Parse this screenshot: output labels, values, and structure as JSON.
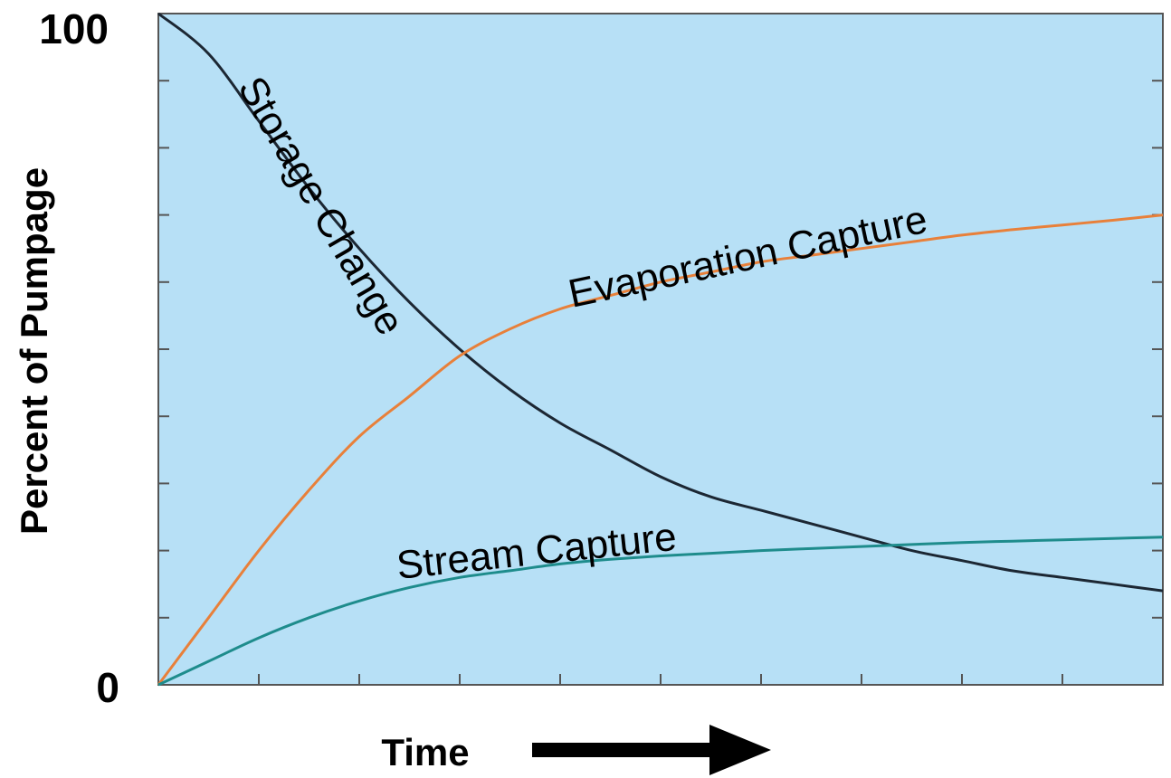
{
  "chart_data": {
    "type": "line",
    "xlabel": "Time",
    "ylabel": "Percent of Pumpage",
    "xlim": [
      0,
      10
    ],
    "ylim": [
      0,
      100
    ],
    "y_tick_labels": [
      "0",
      "100"
    ],
    "grid": false,
    "x": [
      0,
      0.5,
      1,
      1.5,
      2,
      2.5,
      3,
      3.5,
      4,
      4.5,
      5,
      5.5,
      6,
      6.5,
      7,
      7.5,
      8,
      8.5,
      9,
      9.5,
      10
    ],
    "series": [
      {
        "name": "Storage Change",
        "color": "#1c2733",
        "values": [
          100,
          94,
          84,
          74,
          65,
          57,
          50,
          44,
          39,
          35,
          31,
          28,
          26,
          24,
          22,
          20,
          18.5,
          17,
          16,
          15,
          14
        ]
      },
      {
        "name": "Evaporation Capture",
        "color": "#e8803a",
        "values": [
          0,
          10,
          20,
          29,
          37,
          43,
          49,
          53,
          56,
          58,
          60,
          61.5,
          63,
          64,
          65,
          66,
          67,
          67.8,
          68.5,
          69.2,
          70
        ]
      },
      {
        "name": "Stream Capture",
        "color": "#1e8c8c",
        "values": [
          0,
          3.5,
          7,
          10,
          12.5,
          14.5,
          16,
          17,
          18,
          18.7,
          19.2,
          19.6,
          20,
          20.3,
          20.6,
          20.9,
          21.2,
          21.4,
          21.6,
          21.8,
          22
        ]
      }
    ],
    "colors": {
      "plot_background": "#b7e0f6",
      "axis": "#555555",
      "arrow": "#000000"
    }
  }
}
